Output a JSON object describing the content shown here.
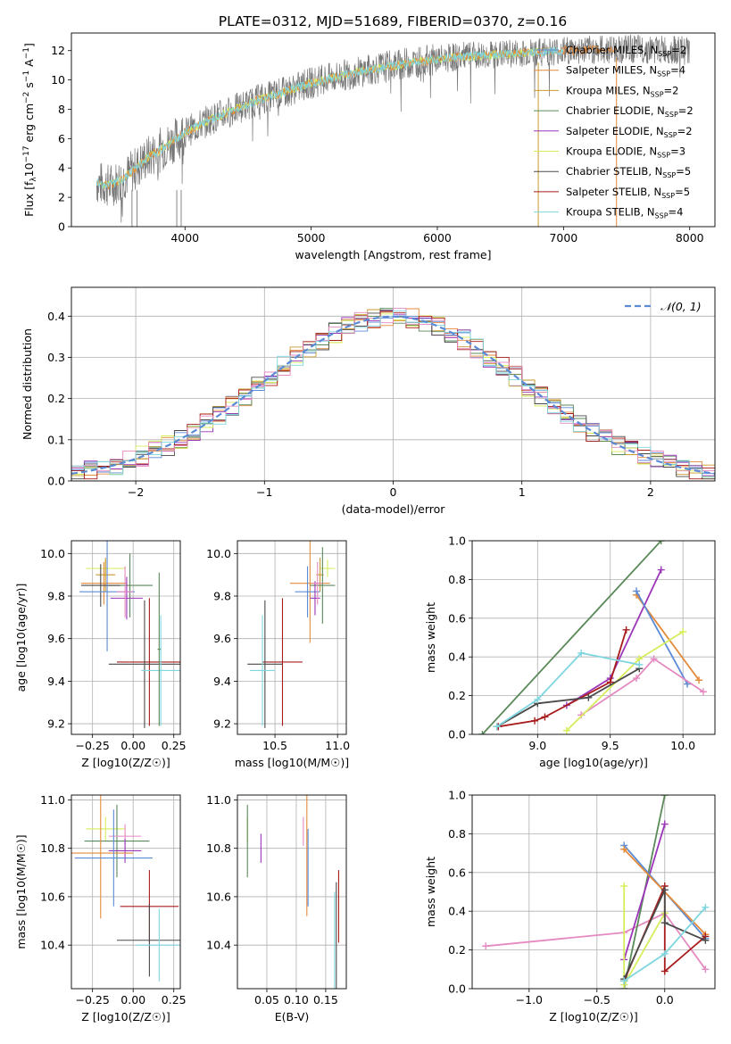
{
  "title": "PLATE=0312, MJD=51689, FIBERID=0370, z=0.16",
  "colors": {
    "Chabrier MILES": "#5b8bd6",
    "Salpeter MILES": "#e48a3a",
    "Kroupa MILES": "#c99a2e",
    "Chabrier ELODIE": "#5a8a5a",
    "Salpeter ELODIE": "#9b35b8",
    "Kroupa ELODIE": "#d6ee5a",
    "Chabrier STELIB": "#4a4a4a",
    "Salpeter STELIB": "#a81c1c",
    "Kroupa STELIB": "#e58ac0",
    "STELIB2": "#7fd6e0",
    "gauss": "#5b8bd6",
    "grid": "#b0b0b0"
  },
  "chart_data": [
    {
      "id": "spectrum",
      "type": "line",
      "title": "PLATE=0312, MJD=51689, FIBERID=0370, z=0.16",
      "xlabel": "wavelength [Angstrom, rest frame]",
      "ylabel_main": "Flux [f",
      "ylabel_sub": "λ",
      "ylabel_rest": "10",
      "ylabel_sup": "−17",
      "ylabel_tail": " erg cm",
      "ylabel_sup2": "−2",
      "ylabel_tail2": " s",
      "ylabel_sup3": "−1",
      "ylabel_tail3": " A",
      "ylabel_sup4": "−1",
      "ylabel_end": "]",
      "xlim": [
        3100,
        8200
      ],
      "ylim": [
        0,
        13.2
      ],
      "xticks": [
        "4000",
        "5000",
        "6000",
        "7000",
        "8000"
      ],
      "yticks": [
        "0",
        "2",
        "4",
        "6",
        "8",
        "10",
        "12"
      ],
      "xtick_values": [
        4000,
        5000,
        6000,
        7000,
        8000
      ],
      "ytick_values": [
        0,
        2,
        4,
        6,
        8,
        10,
        12
      ],
      "continuum": {
        "x": [
          3300,
          3400,
          3500,
          3600,
          3700,
          3800,
          3900,
          4000,
          4200,
          4400,
          4600,
          4800,
          5000,
          5200,
          5400,
          5600,
          5800,
          6000,
          6200,
          6400,
          6600,
          6800,
          7000,
          7200,
          7400,
          7600,
          7800,
          8000
        ],
        "y": [
          3.0,
          2.8,
          3.2,
          3.9,
          4.7,
          5.2,
          5.8,
          6.4,
          7.3,
          8.0,
          8.7,
          9.2,
          9.8,
          10.2,
          10.6,
          10.9,
          11.2,
          11.4,
          11.6,
          11.7,
          11.8,
          11.9,
          12.0,
          12.05,
          12.1,
          12.1,
          12.05,
          12.0
        ]
      },
      "legend": [
        {
          "name": "Chabrier MILES",
          "nssp": "2"
        },
        {
          "name": "Salpeter MILES",
          "nssp": "4"
        },
        {
          "name": "Kroupa MILES",
          "nssp": "2"
        },
        {
          "name": "Chabrier ELODIE",
          "nssp": "2"
        },
        {
          "name": "Salpeter ELODIE",
          "nssp": "2"
        },
        {
          "name": "Kroupa ELODIE",
          "nssp": "3"
        },
        {
          "name": "Chabrier STELIB",
          "nssp": "5"
        },
        {
          "name": "Salpeter STELIB",
          "nssp": "5"
        },
        {
          "name": "Kroupa STELIB",
          "nssp": "4"
        }
      ],
      "legend_placement": "upper-right"
    },
    {
      "id": "residuals",
      "type": "line",
      "xlabel": "(data-model)/error",
      "ylabel": "Normed distribution",
      "xlim": [
        -2.5,
        2.5
      ],
      "ylim": [
        0,
        0.47
      ],
      "xticks": [
        "−2",
        "−1",
        "0",
        "1",
        "2"
      ],
      "xtick_values": [
        -2,
        -1,
        0,
        1,
        2
      ],
      "yticks": [
        "0.0",
        "0.1",
        "0.2",
        "0.3",
        "0.4"
      ],
      "ytick_values": [
        0,
        0.1,
        0.2,
        0.3,
        0.4
      ],
      "grid": true,
      "legend_label": "𝒩(0, 1)",
      "legend_placement": "upper-right",
      "bin_width": 0.1
    },
    {
      "id": "age-vs-z",
      "type": "scatter",
      "xlabel": "Z [log10(Z/Z☉)]",
      "ylabel": "age  [log10(age/yr)]",
      "xlim": [
        -0.38,
        0.29
      ],
      "ylim": [
        9.15,
        10.06
      ],
      "xticks": [
        "−0.25",
        "0.00",
        "0.25"
      ],
      "xtick_values": [
        -0.25,
        0,
        0.25
      ],
      "yticks": [
        "9.2",
        "9.4",
        "9.6",
        "9.8",
        "10.0"
      ],
      "ytick_values": [
        9.2,
        9.4,
        9.6,
        9.8,
        10.0
      ],
      "grid": true,
      "points": [
        {
          "c": "Kroupa ELODIE",
          "x": -0.17,
          "y": 9.93,
          "xe": 0.12,
          "ye": 0.04
        },
        {
          "c": "Kroupa MILES",
          "x": -0.17,
          "y": 9.9,
          "xe": 0.06,
          "ye": 0.08
        },
        {
          "c": "Salpeter MILES",
          "x": -0.18,
          "y": 9.86,
          "xe": 0.14,
          "ye": 0.1
        },
        {
          "c": "Chabrier ELODIE",
          "x": -0.02,
          "y": 9.85,
          "xe": 0.14,
          "ye": 0.15
        },
        {
          "c": "Chabrier STELIB",
          "x": -0.2,
          "y": 9.85,
          "xe": 0.12,
          "ye": 0.1
        },
        {
          "c": "Chabrier MILES",
          "x": -0.16,
          "y": 9.82,
          "xe": 0.17,
          "ye": 0.28
        },
        {
          "c": "Salpeter ELODIE",
          "x": -0.04,
          "y": 9.79,
          "xe": 0.1,
          "ye": 0.1
        },
        {
          "c": "Kroupa STELIB",
          "x": -0.05,
          "y": 9.82,
          "xe": 0.05,
          "ye": 0.12
        },
        {
          "c": "Salpeter STELIB",
          "x": 0.1,
          "y": 9.49,
          "xe": 0.2,
          "ye": 0.3
        },
        {
          "c": "Chabrier STELIB",
          "x": 0.07,
          "y": 9.48,
          "xe": 0.22,
          "ye": 0.3
        },
        {
          "c": "STELIB2",
          "x": 0.17,
          "y": 9.45,
          "xe": 0.12,
          "ye": 0.26
        },
        {
          "c": "Chabrier ELODIE",
          "x": 0.16,
          "y": 9.55,
          "xe": 0.01,
          "ye": 0.36
        }
      ]
    },
    {
      "id": "age-vs-mass",
      "type": "scatter",
      "xlabel": "mass [log10(M/M☉)]",
      "xlim": [
        10.2,
        11.07
      ],
      "ylim": [
        9.15,
        10.06
      ],
      "xticks": [
        "10.5",
        "11.0"
      ],
      "xtick_values": [
        10.5,
        11.0
      ],
      "yticks": [
        "9.2",
        "9.4",
        "9.6",
        "9.8",
        "10.0"
      ],
      "ytick_values": [
        9.2,
        9.4,
        9.6,
        9.8,
        10.0
      ],
      "grid": true,
      "points": [
        {
          "c": "Kroupa ELODIE",
          "x": 10.92,
          "y": 9.93,
          "xe": 0.06,
          "ye": 0.04
        },
        {
          "c": "Kroupa MILES",
          "x": 10.86,
          "y": 9.9,
          "xe": 0.03,
          "ye": 0.08
        },
        {
          "c": "Salpeter MILES",
          "x": 10.78,
          "y": 9.86,
          "xe": 0.16,
          "ye": 0.28
        },
        {
          "c": "Chabrier ELODIE",
          "x": 10.88,
          "y": 9.85,
          "xe": 0.1,
          "ye": 0.18
        },
        {
          "c": "Chabrier MILES",
          "x": 10.76,
          "y": 9.82,
          "xe": 0.1,
          "ye": 0.12
        },
        {
          "c": "Salpeter ELODIE",
          "x": 10.82,
          "y": 9.79,
          "xe": 0.04,
          "ye": 0.08
        },
        {
          "c": "Kroupa STELIB",
          "x": 10.84,
          "y": 9.86,
          "xe": 0.04,
          "ye": 0.1
        },
        {
          "c": "Salpeter STELIB",
          "x": 10.56,
          "y": 9.49,
          "xe": 0.16,
          "ye": 0.3
        },
        {
          "c": "Chabrier STELIB",
          "x": 10.42,
          "y": 9.48,
          "xe": 0.14,
          "ye": 0.3
        },
        {
          "c": "STELIB2",
          "x": 10.4,
          "y": 9.45,
          "xe": 0.1,
          "ye": 0.26
        }
      ]
    },
    {
      "id": "weight-vs-age",
      "type": "line",
      "xlabel": "age  [log10(age/yr)]",
      "ylabel": "mass weight",
      "xlim": [
        8.55,
        10.22
      ],
      "ylim": [
        0,
        1.0
      ],
      "xticks": [
        "9.0",
        "9.5",
        "10.0"
      ],
      "xtick_values": [
        9.0,
        9.5,
        10.0
      ],
      "yticks": [
        "0.0",
        "0.2",
        "0.4",
        "0.6",
        "0.8",
        "1.0"
      ],
      "ytick_values": [
        0,
        0.2,
        0.4,
        0.6,
        0.8,
        1.0
      ],
      "grid": true,
      "series": [
        {
          "c": "Chabrier ELODIE",
          "x": [
            8.62,
            9.85
          ],
          "y": [
            0.0,
            1.0
          ]
        },
        {
          "c": "Salpeter ELODIE",
          "x": [
            9.2,
            9.5,
            9.85
          ],
          "y": [
            0.15,
            0.29,
            0.85
          ]
        },
        {
          "c": "Salpeter MILES",
          "x": [
            9.68,
            10.11
          ],
          "y": [
            0.72,
            0.28
          ]
        },
        {
          "c": "Chabrier MILES",
          "x": [
            9.68,
            10.03
          ],
          "y": [
            0.74,
            0.26
          ]
        },
        {
          "c": "Kroupa STELIB",
          "x": [
            9.3,
            9.68,
            9.8,
            10.14
          ],
          "y": [
            0.1,
            0.29,
            0.39,
            0.22
          ]
        },
        {
          "c": "Kroupa ELODIE",
          "x": [
            9.2,
            9.7,
            10.0
          ],
          "y": [
            0.02,
            0.39,
            0.53
          ]
        },
        {
          "c": "Salpeter STELIB",
          "x": [
            8.73,
            8.98,
            9.05,
            9.5,
            9.61
          ],
          "y": [
            0.04,
            0.07,
            0.09,
            0.27,
            0.54
          ]
        },
        {
          "c": "Chabrier STELIB",
          "x": [
            8.72,
            9.0,
            9.35,
            9.7
          ],
          "y": [
            0.04,
            0.16,
            0.19,
            0.34
          ]
        },
        {
          "c": "STELIB2",
          "x": [
            8.72,
            9.0,
            9.3,
            9.7
          ],
          "y": [
            0.04,
            0.18,
            0.42,
            0.36
          ]
        }
      ]
    },
    {
      "id": "mass-vs-z",
      "type": "scatter",
      "xlabel": "Z [log10(Z/Z☉)]",
      "ylabel": "mass [log10(M/M☉)]",
      "xlim": [
        -0.38,
        0.29
      ],
      "ylim": [
        10.22,
        11.02
      ],
      "xticks": [
        "−0.25",
        "0.00",
        "0.25"
      ],
      "xtick_values": [
        -0.25,
        0,
        0.25
      ],
      "yticks": [
        "10.4",
        "10.6",
        "10.8",
        "11.0"
      ],
      "ytick_values": [
        10.4,
        10.6,
        10.8,
        11.0
      ],
      "grid": true,
      "points": [
        {
          "c": "Kroupa ELODIE",
          "x": -0.17,
          "y": 10.88,
          "xe": 0.12,
          "ye": 0.05
        },
        {
          "c": "Chabrier ELODIE",
          "x": -0.1,
          "y": 10.83,
          "xe": 0.2,
          "ye": 0.15
        },
        {
          "c": "Kroupa STELIB",
          "x": -0.05,
          "y": 10.85,
          "xe": 0.1,
          "ye": 0.05
        },
        {
          "c": "Salpeter ELODIE",
          "x": -0.05,
          "y": 10.79,
          "xe": 0.1,
          "ye": 0.05
        },
        {
          "c": "Salpeter MILES",
          "x": -0.2,
          "y": 10.78,
          "xe": 0.2,
          "ye": 0.27
        },
        {
          "c": "Chabrier MILES",
          "x": -0.12,
          "y": 10.76,
          "xe": 0.24,
          "ye": 0.2
        },
        {
          "c": "Salpeter STELIB",
          "x": 0.1,
          "y": 10.56,
          "xe": 0.18,
          "ye": 0.15
        },
        {
          "c": "Chabrier STELIB",
          "x": 0.1,
          "y": 10.42,
          "xe": 0.2,
          "ye": 0.15
        },
        {
          "c": "STELIB2",
          "x": 0.16,
          "y": 10.4,
          "xe": 0.14,
          "ye": 0.15
        }
      ]
    },
    {
      "id": "mass-vs-ebv",
      "type": "scatter",
      "xlabel": "E(B-V)",
      "xlim": [
        0.0,
        0.185
      ],
      "ylim": [
        10.22,
        11.02
      ],
      "xticks": [
        "0.05",
        "0.10",
        "0.15"
      ],
      "xtick_values": [
        0.05,
        0.1,
        0.15
      ],
      "yticks": [
        "10.4",
        "10.6",
        "10.8",
        "11.0"
      ],
      "ytick_values": [
        10.4,
        10.6,
        10.8,
        11.0
      ],
      "grid": true,
      "points": [
        {
          "c": "Kroupa ELODIE",
          "x": 0.017,
          "y": 10.88,
          "xe": 0,
          "ye": 0.05
        },
        {
          "c": "Chabrier ELODIE",
          "x": 0.017,
          "y": 10.83,
          "xe": 0,
          "ye": 0.15
        },
        {
          "c": "Salpeter ELODIE",
          "x": 0.04,
          "y": 10.8,
          "xe": 0,
          "ye": 0.06
        },
        {
          "c": "Kroupa STELIB",
          "x": 0.112,
          "y": 10.87,
          "xe": 0,
          "ye": 0.06
        },
        {
          "c": "Salpeter MILES",
          "x": 0.118,
          "y": 10.78,
          "xe": 0,
          "ye": 0.26
        },
        {
          "c": "Chabrier MILES",
          "x": 0.12,
          "y": 10.72,
          "xe": 0,
          "ye": 0.16
        },
        {
          "c": "Chabrier STELIB",
          "x": 0.168,
          "y": 10.44,
          "xe": 0,
          "ye": 0.22
        },
        {
          "c": "STELIB2",
          "x": 0.165,
          "y": 10.42,
          "xe": 0,
          "ye": 0.2
        },
        {
          "c": "Salpeter STELIB",
          "x": 0.172,
          "y": 10.56,
          "xe": 0,
          "ye": 0.15
        }
      ]
    },
    {
      "id": "weight-vs-z",
      "type": "line",
      "xlabel": "Z [log10(Z/Z☉)]",
      "ylabel": "mass weight",
      "xlim": [
        -1.42,
        0.37
      ],
      "ylim": [
        0,
        1.0
      ],
      "xticks": [
        "−1.0",
        "−0.5",
        "0.0"
      ],
      "xtick_values": [
        -1.0,
        -0.5,
        0.0
      ],
      "yticks": [
        "0.0",
        "0.2",
        "0.4",
        "0.6",
        "0.8",
        "1.0"
      ],
      "ytick_values": [
        0,
        0.2,
        0.4,
        0.6,
        0.8,
        1.0
      ],
      "grid": true,
      "series": [
        {
          "c": "Kroupa STELIB",
          "x": [
            -1.32,
            -0.3,
            0.0,
            0.3
          ],
          "y": [
            0.22,
            0.29,
            0.39,
            0.1
          ]
        },
        {
          "c": "Chabrier ELODIE",
          "x": [
            -0.3,
            0.0
          ],
          "y": [
            0.0,
            1.0
          ]
        },
        {
          "c": "Salpeter ELODIE",
          "x": [
            -0.3,
            0.0
          ],
          "y": [
            0.15,
            0.85
          ]
        },
        {
          "c": "Chabrier MILES",
          "x": [
            -0.3,
            0.3
          ],
          "y": [
            0.74,
            0.26
          ]
        },
        {
          "c": "Salpeter MILES",
          "x": [
            -0.3,
            0.3
          ],
          "y": [
            0.72,
            0.28
          ]
        },
        {
          "c": "Kroupa ELODIE",
          "x": [
            -0.3,
            -0.3,
            0.0
          ],
          "y": [
            0.53,
            0.02,
            0.39
          ]
        },
        {
          "c": "Salpeter STELIB",
          "x": [
            -0.3,
            0.0,
            0.0,
            0.3
          ],
          "y": [
            0.04,
            0.53,
            0.09,
            0.27
          ]
        },
        {
          "c": "Chabrier STELIB",
          "x": [
            -0.3,
            0.0,
            0.0,
            0.3
          ],
          "y": [
            0.05,
            0.51,
            0.34,
            0.25
          ]
        },
        {
          "c": "STELIB2",
          "x": [
            -0.3,
            0.0,
            0.3
          ],
          "y": [
            0.04,
            0.18,
            0.42
          ]
        }
      ]
    }
  ]
}
